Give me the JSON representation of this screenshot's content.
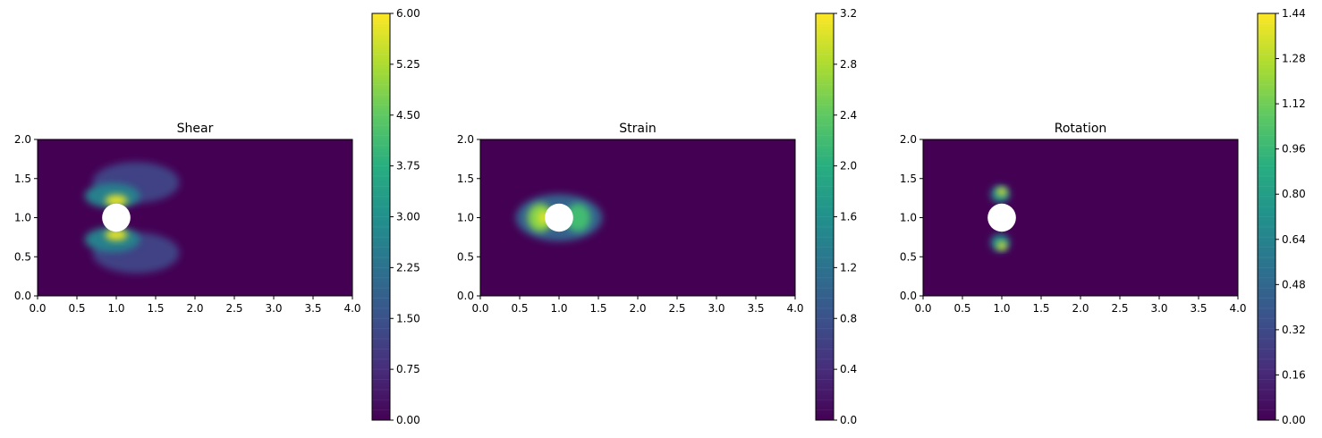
{
  "chart_data": [
    {
      "type": "heatmap",
      "title": "Shear",
      "xlim": [
        0,
        4
      ],
      "ylim": [
        0,
        2
      ],
      "xticks": [
        "0.0",
        "0.5",
        "1.0",
        "1.5",
        "2.0",
        "2.5",
        "3.0",
        "3.5",
        "4.0"
      ],
      "yticks": [
        "0.0",
        "0.5",
        "1.0",
        "1.5",
        "2.0"
      ],
      "colorbar": {
        "min": 0,
        "max": 6.0,
        "ticks": [
          "0.00",
          "0.75",
          "1.50",
          "2.25",
          "3.00",
          "3.75",
          "4.50",
          "5.25",
          "6.00"
        ]
      },
      "obstacle": {
        "x": 1.0,
        "y": 1.0,
        "r": 0.18
      },
      "background_value": 0,
      "blobs": [
        {
          "x": 1.25,
          "y": 1.45,
          "rx": 0.55,
          "ry": 0.26,
          "value": 1.2
        },
        {
          "x": 1.25,
          "y": 0.55,
          "rx": 0.55,
          "ry": 0.26,
          "value": 1.2
        },
        {
          "x": 0.95,
          "y": 1.28,
          "rx": 0.35,
          "ry": 0.16,
          "value": 2.6
        },
        {
          "x": 0.95,
          "y": 0.72,
          "rx": 0.35,
          "ry": 0.16,
          "value": 2.6
        },
        {
          "x": 1.0,
          "y": 1.22,
          "rx": 0.14,
          "ry": 0.07,
          "value": 5.8
        },
        {
          "x": 1.0,
          "y": 0.78,
          "rx": 0.14,
          "ry": 0.07,
          "value": 5.8
        }
      ]
    },
    {
      "type": "heatmap",
      "title": "Strain",
      "xlim": [
        0,
        4
      ],
      "ylim": [
        0,
        2
      ],
      "xticks": [
        "0.0",
        "0.5",
        "1.0",
        "1.5",
        "2.0",
        "2.5",
        "3.0",
        "3.5",
        "4.0"
      ],
      "yticks": [
        "0.0",
        "0.5",
        "1.0",
        "1.5",
        "2.0"
      ],
      "colorbar": {
        "min": 0,
        "max": 3.2,
        "ticks": [
          "0.0",
          "0.4",
          "0.8",
          "1.2",
          "1.6",
          "2.0",
          "2.4",
          "2.8",
          "3.2"
        ]
      },
      "obstacle": {
        "x": 1.0,
        "y": 1.0,
        "r": 0.18
      },
      "background_value": 0,
      "blobs": [
        {
          "x": 1.0,
          "y": 1.0,
          "rx": 0.55,
          "ry": 0.3,
          "value": 1.0
        },
        {
          "x": 0.76,
          "y": 1.0,
          "rx": 0.16,
          "ry": 0.18,
          "value": 2.6
        },
        {
          "x": 1.24,
          "y": 1.0,
          "rx": 0.16,
          "ry": 0.18,
          "value": 2.2
        },
        {
          "x": 0.8,
          "y": 1.0,
          "rx": 0.06,
          "ry": 0.08,
          "value": 3.1
        }
      ]
    },
    {
      "type": "heatmap",
      "title": "Rotation",
      "xlim": [
        0,
        4
      ],
      "ylim": [
        0,
        2
      ],
      "xticks": [
        "0.0",
        "0.5",
        "1.0",
        "1.5",
        "2.0",
        "2.5",
        "3.0",
        "3.5",
        "4.0"
      ],
      "yticks": [
        "0.0",
        "0.5",
        "1.0",
        "1.5",
        "2.0"
      ],
      "colorbar": {
        "min": 0,
        "max": 1.44,
        "ticks": [
          "0.00",
          "0.16",
          "0.32",
          "0.48",
          "0.64",
          "0.80",
          "0.96",
          "1.12",
          "1.28",
          "1.44"
        ]
      },
      "obstacle": {
        "x": 1.0,
        "y": 1.0,
        "r": 0.18
      },
      "background_value": 0,
      "blobs": [
        {
          "x": 0.98,
          "y": 1.3,
          "rx": 0.12,
          "ry": 0.11,
          "value": 0.7
        },
        {
          "x": 0.98,
          "y": 0.68,
          "rx": 0.12,
          "ry": 0.11,
          "value": 0.7
        },
        {
          "x": 1.0,
          "y": 1.33,
          "rx": 0.06,
          "ry": 0.05,
          "value": 1.4
        },
        {
          "x": 1.0,
          "y": 0.64,
          "rx": 0.06,
          "ry": 0.05,
          "value": 1.4
        }
      ]
    }
  ]
}
